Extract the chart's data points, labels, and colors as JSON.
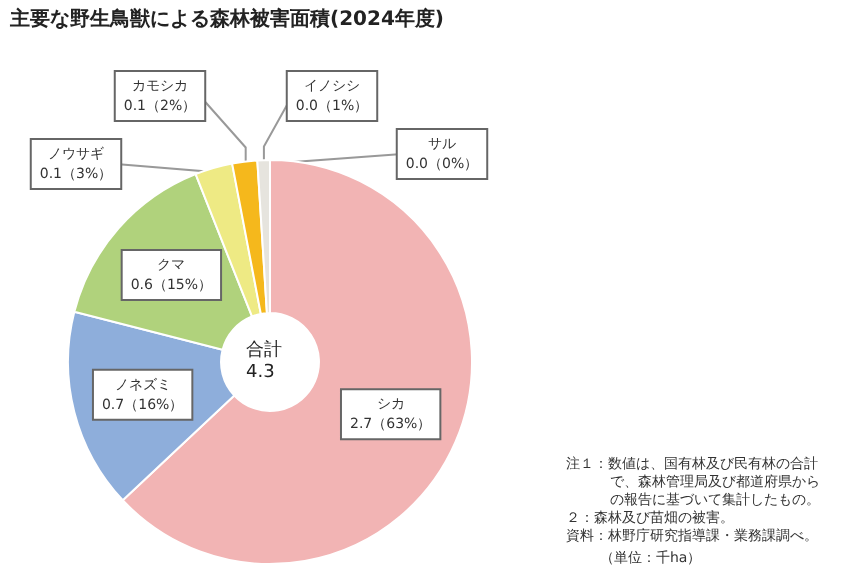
{
  "chart_data": {
    "type": "donut",
    "title": "主要な野生鳥獣による森林被害面積(2024年度)",
    "categories": [
      "シカ",
      "ノネズミ",
      "クマ",
      "ノウサギ",
      "カモシカ",
      "イノシシ",
      "サル"
    ],
    "values": [
      63,
      16,
      15,
      3,
      2,
      1,
      0
    ],
    "value_labels": [
      "2.7（63%）",
      "0.7（16%）",
      "0.6（15%）",
      "0.1（3%）",
      "0.1（2%）",
      "0.0（1%）",
      "0.0（0%）"
    ],
    "colors": [
      "#f2b4b4",
      "#8eaedb",
      "#b0d27c",
      "#eeea84",
      "#f5b81c",
      "#e6e4de",
      "#c9d2e3"
    ],
    "annotations": [
      "合計\n4.3",
      "（単位：千ha）",
      "注１：数値は、国有林及び民有林の合計で、森林管理局及び都道府県からの報告に基づいて集計したもの。",
      "２：森林及び苗畑の被害。",
      "資料：林野庁研究指導課・業務課調べ。"
    ]
  }
}
